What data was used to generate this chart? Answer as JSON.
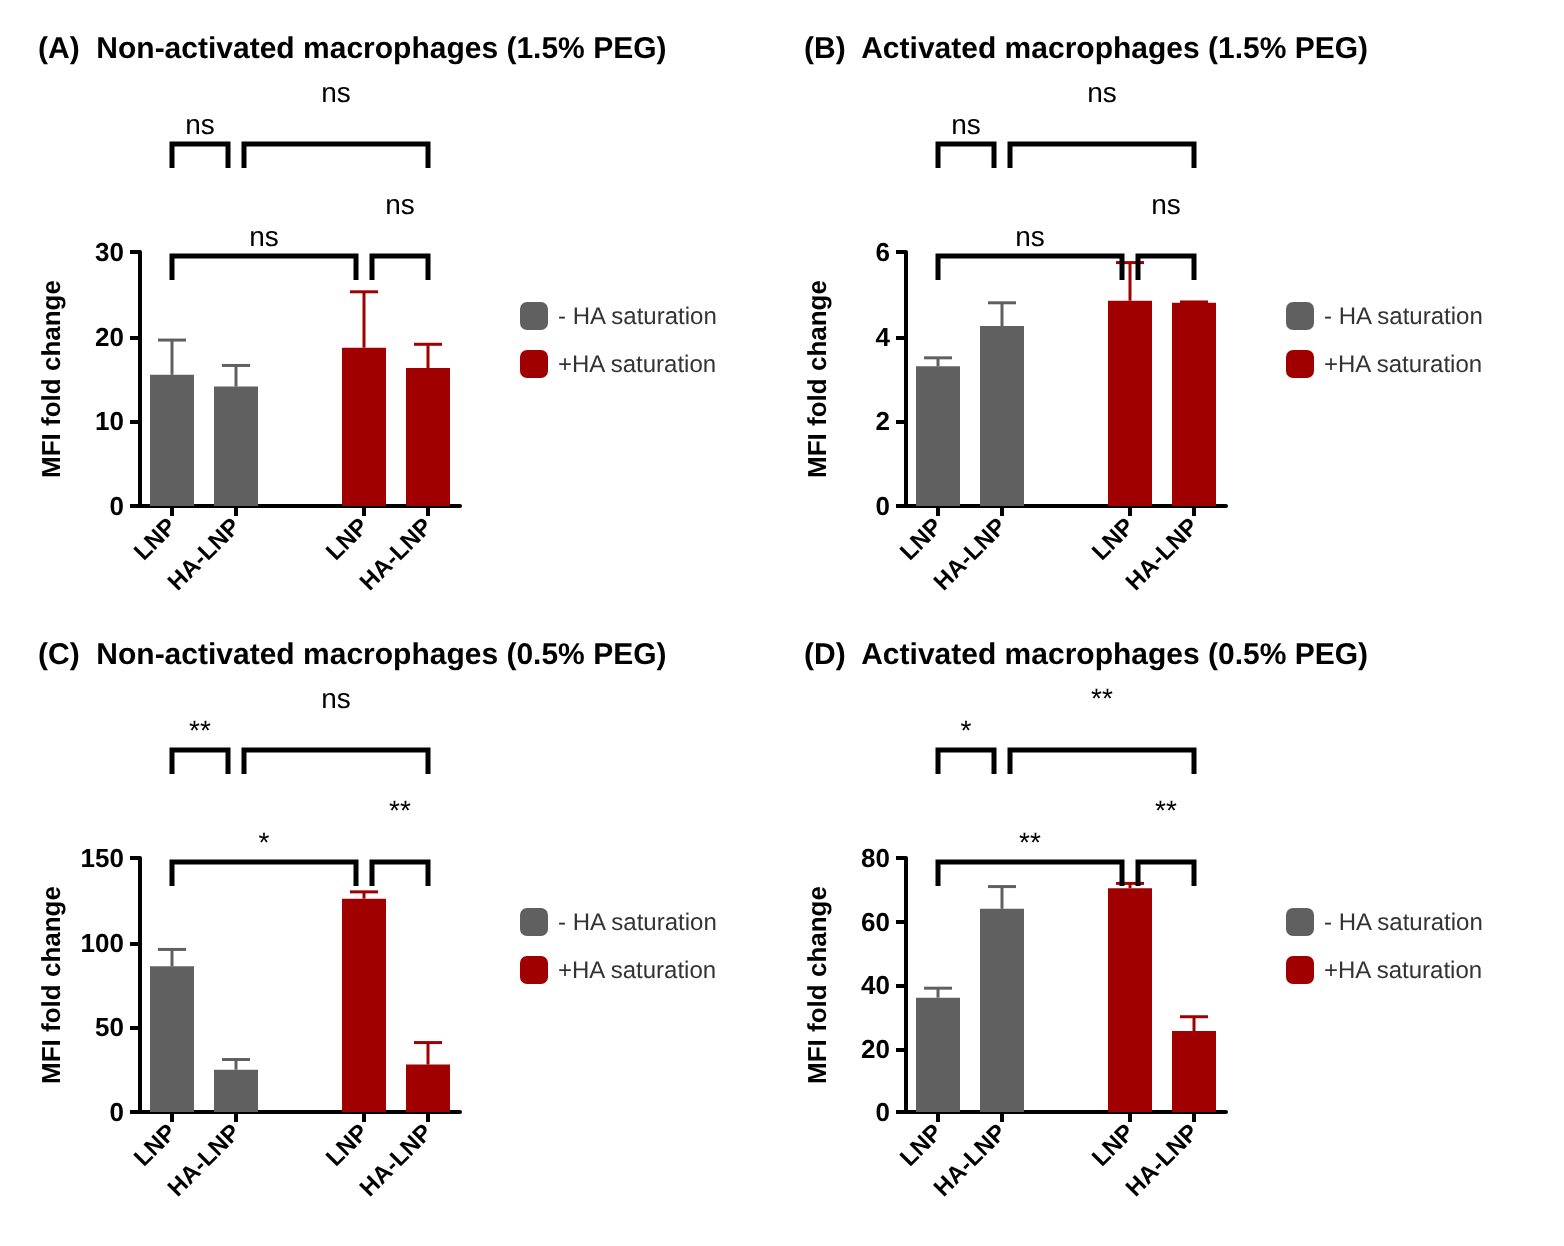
{
  "chart_data": [
    {
      "type": "bar",
      "title": "(A)  Non-activated macrophages (1.5% PEG)",
      "ylabel": "MFI fold change",
      "categories": [
        "LNP",
        "HA-LNP",
        null,
        "LNP",
        "HA-LNP"
      ],
      "series": [
        {
          "name": "- HA saturation",
          "color": "#606060",
          "values": [
            15.5,
            14.1,
            null,
            null,
            null
          ],
          "errors": [
            [
              15.5,
              19.6
            ],
            [
              14.1,
              16.6
            ],
            null,
            null,
            null
          ]
        },
        {
          "name": "+HA saturation",
          "color": "#a00000",
          "values": [
            null,
            null,
            null,
            18.7,
            16.3
          ],
          "errors": [
            null,
            null,
            null,
            [
              18.7,
              25.3
            ],
            [
              16.3,
              19.1
            ]
          ]
        }
      ],
      "ylim": [
        0,
        30
      ],
      "yticks": [
        0,
        10,
        20,
        30
      ],
      "grid": false,
      "legend": "right",
      "annotations": [
        "ns",
        "ns",
        "ns",
        "ns"
      ]
    },
    {
      "type": "bar",
      "title": "(B)  Activated macrophages (1.5% PEG)",
      "ylabel": "MFI fold change",
      "categories": [
        "LNP",
        "HA-LNP",
        null,
        "LNP",
        "HA-LNP"
      ],
      "series": [
        {
          "name": "- HA saturation",
          "color": "#606060",
          "values": [
            3.3,
            4.25,
            null,
            null,
            null
          ],
          "errors": [
            [
              3.3,
              3.5
            ],
            [
              4.25,
              4.8
            ],
            null,
            null,
            null
          ]
        },
        {
          "name": "+HA saturation",
          "color": "#a00000",
          "values": [
            null,
            null,
            null,
            4.85,
            4.8
          ],
          "errors": [
            null,
            null,
            null,
            [
              4.85,
              5.75
            ],
            [
              4.8,
              4.82
            ]
          ]
        }
      ],
      "ylim": [
        0,
        6
      ],
      "yticks": [
        0,
        2,
        4,
        6
      ],
      "grid": false,
      "legend": "right",
      "annotations": [
        "ns",
        "ns",
        "ns",
        "ns"
      ]
    },
    {
      "type": "bar",
      "title": "(C)  Non-activated macrophages (0.5% PEG)",
      "ylabel": "MFI fold change",
      "categories": [
        "LNP",
        "HA-LNP",
        null,
        "LNP",
        "HA-LNP"
      ],
      "series": [
        {
          "name": "- HA saturation",
          "color": "#606060",
          "values": [
            86,
            25,
            null,
            null,
            null
          ],
          "errors": [
            [
              86,
              96
            ],
            [
              25,
              31
            ],
            null,
            null,
            null
          ]
        },
        {
          "name": "+HA saturation",
          "color": "#a00000",
          "values": [
            null,
            null,
            null,
            126,
            28
          ],
          "errors": [
            null,
            null,
            null,
            [
              126,
              130
            ],
            [
              28,
              41
            ]
          ]
        }
      ],
      "ylim": [
        0,
        150
      ],
      "yticks": [
        0,
        50,
        100,
        150
      ],
      "grid": false,
      "legend": "right",
      "annotations": [
        "**",
        "ns",
        "*",
        "**"
      ]
    },
    {
      "type": "bar",
      "title": "(D)  Activated macrophages (0.5% PEG)",
      "ylabel": "MFI fold change",
      "categories": [
        "LNP",
        "HA-LNP",
        null,
        "LNP",
        "HA-LNP"
      ],
      "series": [
        {
          "name": "- HA saturation",
          "color": "#606060",
          "values": [
            36,
            64,
            null,
            null,
            null
          ],
          "errors": [
            [
              36,
              39
            ],
            [
              64,
              71
            ],
            null,
            null,
            null
          ]
        },
        {
          "name": "+HA saturation",
          "color": "#a00000",
          "values": [
            null,
            null,
            null,
            70.5,
            25.5
          ],
          "errors": [
            null,
            null,
            null,
            [
              70.5,
              72
            ],
            [
              25.5,
              30
            ]
          ]
        }
      ],
      "ylim": [
        0,
        80
      ],
      "yticks": [
        0,
        20,
        40,
        60,
        80
      ],
      "grid": false,
      "legend": "right",
      "annotations": [
        "*",
        "**",
        "**",
        "**"
      ]
    }
  ]
}
